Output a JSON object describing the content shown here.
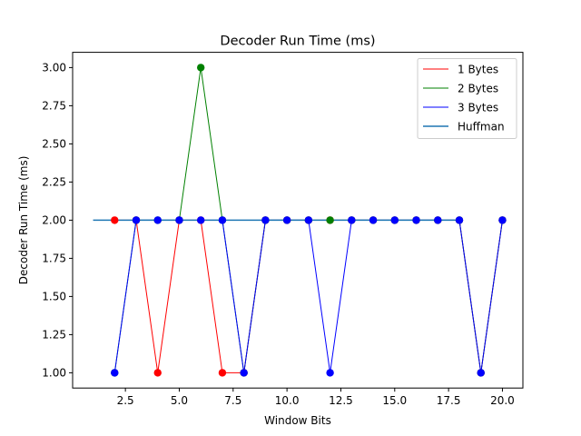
{
  "chart_data": {
    "type": "line",
    "title": "Decoder Run Time (ms)",
    "xlabel": "Window Bits",
    "ylabel": "Decoder Run Time (ms)",
    "xlim": [
      0.05,
      20.95
    ],
    "ylim": [
      0.9,
      3.1
    ],
    "xticks": [
      2.5,
      5.0,
      7.5,
      10.0,
      12.5,
      15.0,
      17.5,
      20.0
    ],
    "xtick_labels": [
      "2.5",
      "5.0",
      "7.5",
      "10.0",
      "12.5",
      "15.0",
      "17.5",
      "20.0"
    ],
    "yticks": [
      1.0,
      1.25,
      1.5,
      1.75,
      2.0,
      2.25,
      2.5,
      2.75,
      3.0
    ],
    "ytick_labels": [
      "1.00",
      "1.25",
      "1.50",
      "1.75",
      "2.00",
      "2.25",
      "2.50",
      "2.75",
      "3.00"
    ],
    "grid": false,
    "legend_position": "top-right",
    "series": [
      {
        "name": "1 Bytes",
        "color": "#ff0000",
        "markers": true,
        "x": [
          2,
          3,
          4,
          5,
          6,
          7,
          8,
          9,
          10,
          11,
          12,
          13,
          14,
          15,
          16,
          17,
          18,
          19,
          20
        ],
        "y": [
          2,
          2,
          1,
          2,
          2,
          1,
          1,
          2,
          2,
          2,
          2,
          2,
          2,
          2,
          2,
          2,
          2,
          1,
          2
        ]
      },
      {
        "name": "2 Bytes",
        "color": "#008000",
        "markers": true,
        "x": [
          2,
          3,
          4,
          5,
          6,
          7,
          8,
          9,
          10,
          11,
          12,
          13,
          14,
          15,
          16,
          17,
          18,
          19,
          20
        ],
        "y": [
          1,
          2,
          2,
          2,
          3,
          2,
          1,
          2,
          2,
          2,
          2,
          2,
          2,
          2,
          2,
          2,
          2,
          1,
          2
        ]
      },
      {
        "name": "3 Bytes",
        "color": "#0000ff",
        "markers": true,
        "x": [
          2,
          3,
          4,
          5,
          6,
          7,
          8,
          9,
          10,
          11,
          12,
          13,
          14,
          15,
          16,
          17,
          18,
          19,
          20
        ],
        "y": [
          1,
          2,
          2,
          2,
          2,
          2,
          1,
          2,
          2,
          2,
          1,
          2,
          2,
          2,
          2,
          2,
          2,
          1,
          2
        ]
      },
      {
        "name": "Huffman",
        "color": "#1f77b4",
        "markers": false,
        "x": [
          1,
          18
        ],
        "y": [
          2,
          2
        ]
      }
    ]
  }
}
